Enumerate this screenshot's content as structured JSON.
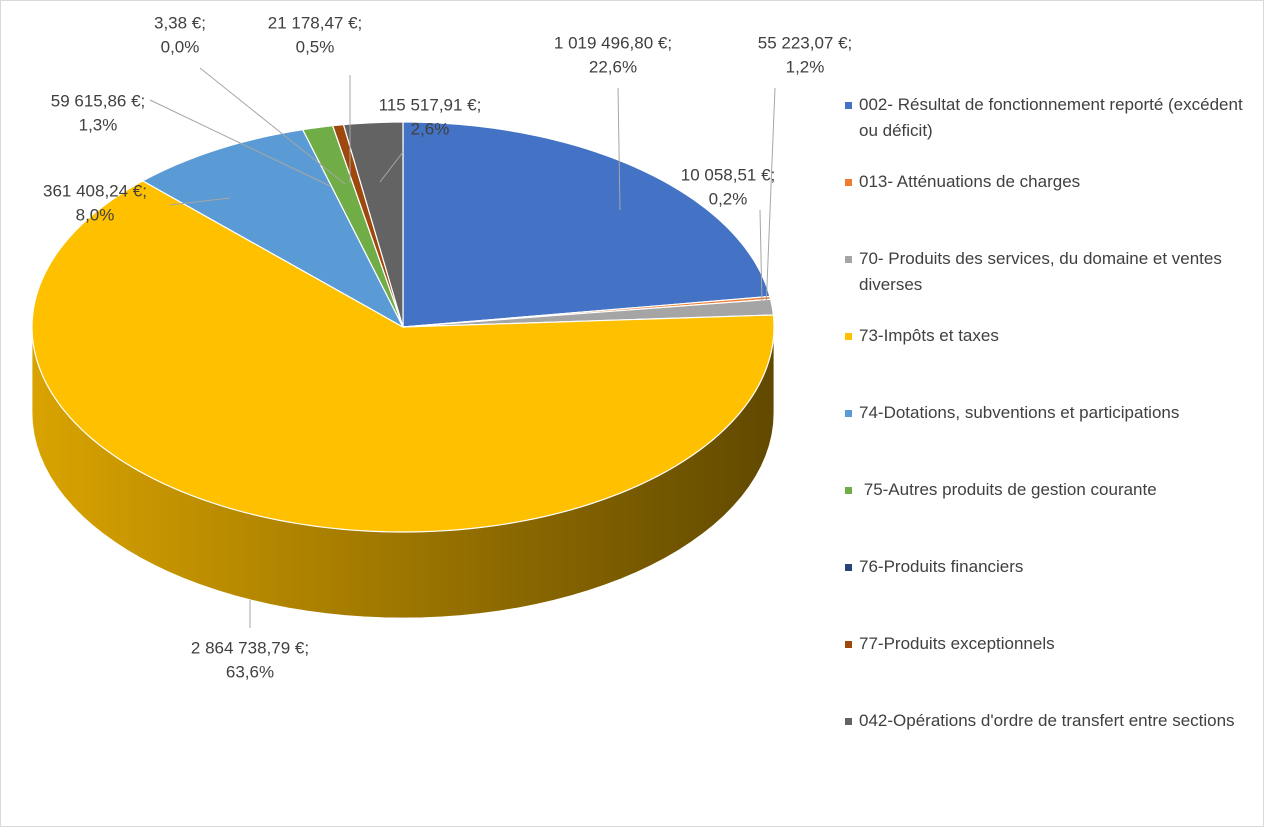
{
  "chart_data": {
    "type": "pie",
    "categories": [
      "002- Résultat de fonctionnement reporté (excédent ou déficit)",
      "013- Atténuations de charges",
      "70- Produits des services, du domaine et ventes diverses",
      "73-Impôts et taxes",
      "74-Dotations, subventions et participations",
      " 75-Autres produits de gestion courante",
      "76-Produits financiers",
      "77-Produits exceptionnels",
      "042-Opérations d'ordre de transfert entre sections"
    ],
    "values": [
      1019496.8,
      10058.51,
      55223.07,
      2864738.79,
      361408.24,
      59615.86,
      3.38,
      21178.47,
      115517.91
    ],
    "value_labels": [
      "1 019 496,80 €;",
      "10 058,51 €;",
      "55 223,07 €;",
      "2 864 738,79 €;",
      "361 408,24 €;",
      "59 615,86 €;",
      "3,38 €;",
      "21 178,47 €;",
      "115 517,91 €;"
    ],
    "percent_labels": [
      "22,6%",
      "0,2%",
      "1,2%",
      "63,6%",
      "8,0%",
      "1,3%",
      "0,0%",
      "0,5%",
      "2,6%"
    ],
    "colors": [
      "#4472c4",
      "#ed7d31",
      "#a5a5a5",
      "#ffc000",
      "#5b9bd5",
      "#70ad47",
      "#264478",
      "#9e480e",
      "#636363"
    ],
    "legend": "right"
  }
}
